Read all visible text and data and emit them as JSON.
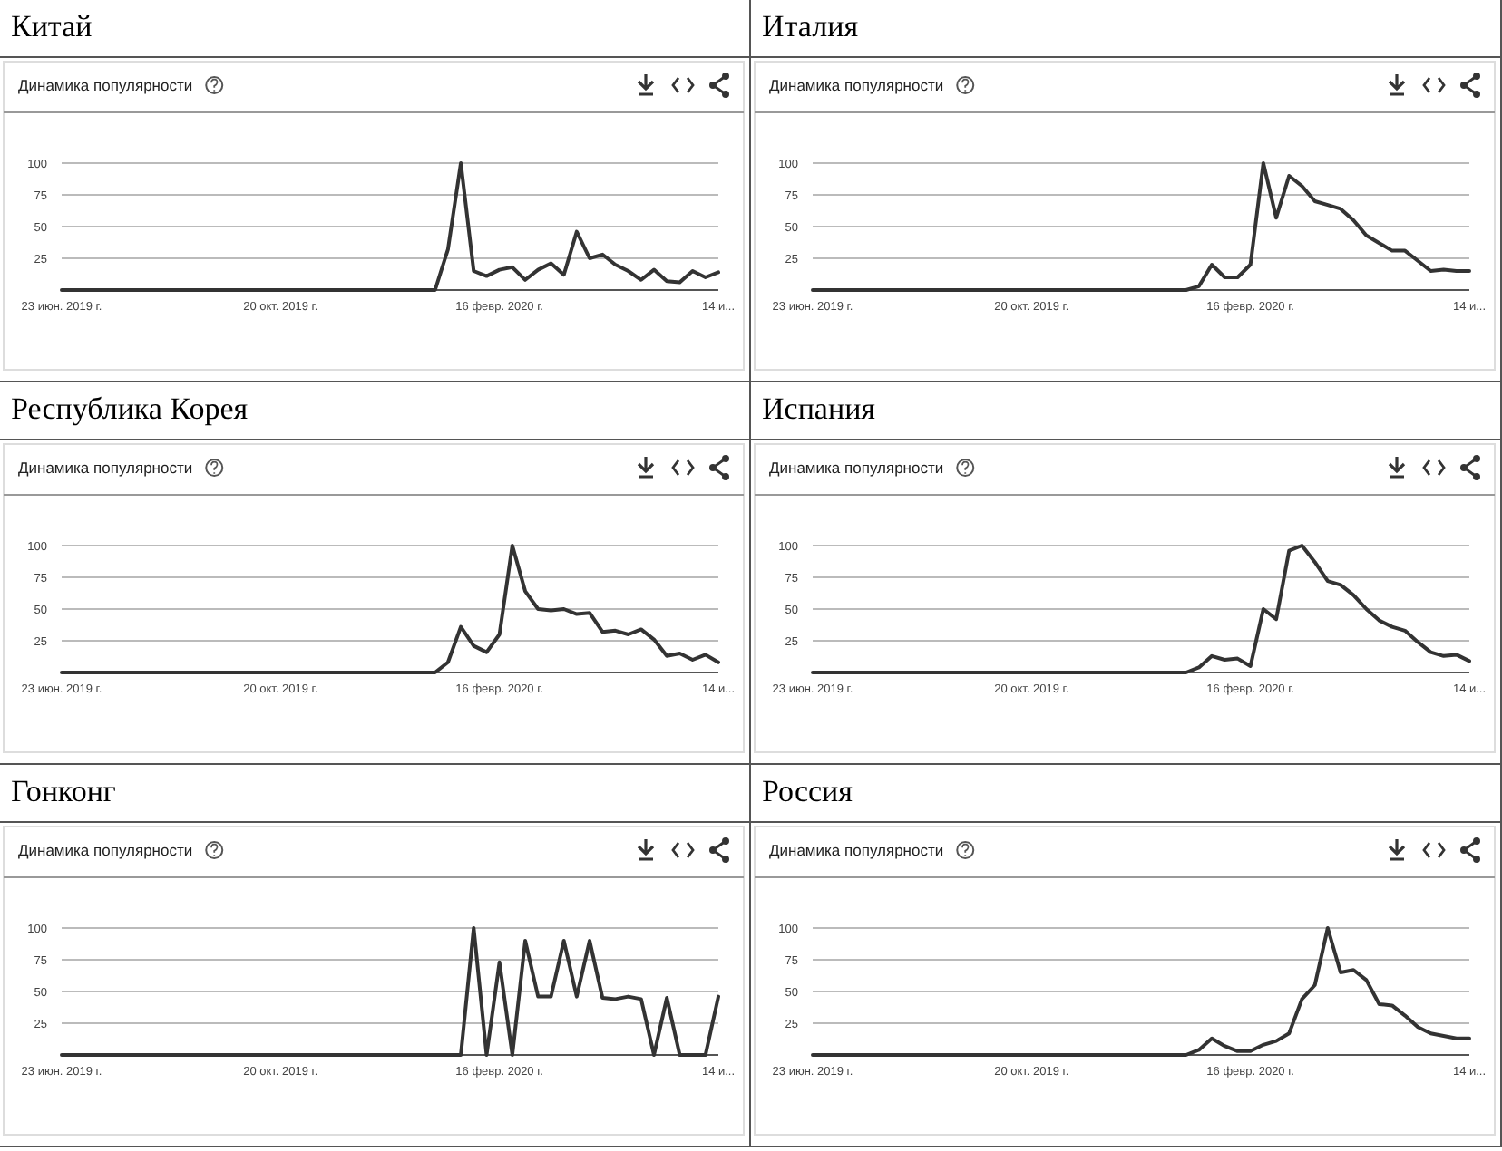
{
  "chart_data": [
    {
      "type": "line",
      "title": "Китай",
      "subtitle": "Динамика популярности",
      "color": "#333333",
      "grid": "y",
      "xlim": [
        "2019-06-23",
        "2020-06-14"
      ],
      "xticks": [
        {
          "value": "2019-06-23",
          "label": "23 июн. 2019 г."
        },
        {
          "value": "2019-10-20",
          "label": "20 окт. 2019 г."
        },
        {
          "value": "2020-02-16",
          "label": "16 февр. 2020 г."
        },
        {
          "value": "2020-06-14",
          "label": "14 и..."
        }
      ],
      "ylim": [
        0,
        100
      ],
      "yticks": [
        25,
        50,
        75,
        100
      ],
      "x": [
        "2019-06-23",
        "2020-01-12",
        "2020-01-19",
        "2020-01-26",
        "2020-02-02",
        "2020-02-09",
        "2020-02-16",
        "2020-02-23",
        "2020-03-01",
        "2020-03-08",
        "2020-03-15",
        "2020-03-22",
        "2020-03-29",
        "2020-04-05",
        "2020-04-12",
        "2020-04-19",
        "2020-04-26",
        "2020-05-03",
        "2020-05-10",
        "2020-05-17",
        "2020-05-24",
        "2020-05-31",
        "2020-06-07",
        "2020-06-14"
      ],
      "values": [
        0,
        0,
        32,
        100,
        15,
        11,
        16,
        18,
        8,
        16,
        21,
        12,
        46,
        25,
        28,
        20,
        15,
        8,
        16,
        7,
        6,
        15,
        10,
        14
      ]
    },
    {
      "type": "line",
      "title": "Италия",
      "subtitle": "Динамика популярности",
      "color": "#333333",
      "grid": "y",
      "xlim": [
        "2019-06-23",
        "2020-06-14"
      ],
      "xticks": [
        {
          "value": "2019-06-23",
          "label": "23 июн. 2019 г."
        },
        {
          "value": "2019-10-20",
          "label": "20 окт. 2019 г."
        },
        {
          "value": "2020-02-16",
          "label": "16 февр. 2020 г."
        },
        {
          "value": "2020-06-14",
          "label": "14 и..."
        }
      ],
      "ylim": [
        0,
        100
      ],
      "yticks": [
        25,
        50,
        75,
        100
      ],
      "x": [
        "2019-06-23",
        "2020-01-12",
        "2020-01-19",
        "2020-01-26",
        "2020-02-02",
        "2020-02-09",
        "2020-02-16",
        "2020-02-23",
        "2020-03-01",
        "2020-03-08",
        "2020-03-15",
        "2020-03-22",
        "2020-03-29",
        "2020-04-05",
        "2020-04-12",
        "2020-04-19",
        "2020-04-26",
        "2020-05-03",
        "2020-05-10",
        "2020-05-17",
        "2020-05-24",
        "2020-05-31",
        "2020-06-07",
        "2020-06-14"
      ],
      "values": [
        0,
        0,
        3,
        20,
        10,
        10,
        20,
        100,
        57,
        90,
        82,
        70,
        67,
        64,
        55,
        43,
        37,
        31,
        31,
        23,
        15,
        16,
        15,
        15
      ]
    },
    {
      "type": "line",
      "title": "Республика Корея",
      "subtitle": "Динамика популярности",
      "color": "#333333",
      "grid": "y",
      "xlim": [
        "2019-06-23",
        "2020-06-14"
      ],
      "xticks": [
        {
          "value": "2019-06-23",
          "label": "23 июн. 2019 г."
        },
        {
          "value": "2019-10-20",
          "label": "20 окт. 2019 г."
        },
        {
          "value": "2020-02-16",
          "label": "16 февр. 2020 г."
        },
        {
          "value": "2020-06-14",
          "label": "14 и..."
        }
      ],
      "ylim": [
        0,
        100
      ],
      "yticks": [
        25,
        50,
        75,
        100
      ],
      "x": [
        "2019-06-23",
        "2020-01-12",
        "2020-01-19",
        "2020-01-26",
        "2020-02-02",
        "2020-02-09",
        "2020-02-16",
        "2020-02-23",
        "2020-03-01",
        "2020-03-08",
        "2020-03-15",
        "2020-03-22",
        "2020-03-29",
        "2020-04-05",
        "2020-04-12",
        "2020-04-19",
        "2020-04-26",
        "2020-05-03",
        "2020-05-10",
        "2020-05-17",
        "2020-05-24",
        "2020-05-31",
        "2020-06-07",
        "2020-06-14"
      ],
      "values": [
        0,
        0,
        8,
        36,
        21,
        16,
        30,
        100,
        64,
        50,
        49,
        50,
        46,
        47,
        32,
        33,
        30,
        34,
        26,
        13,
        15,
        10,
        14,
        8
      ]
    },
    {
      "type": "line",
      "title": "Испания",
      "subtitle": "Динамика популярности",
      "color": "#333333",
      "grid": "y",
      "xlim": [
        "2019-06-23",
        "2020-06-14"
      ],
      "xticks": [
        {
          "value": "2019-06-23",
          "label": "23 июн. 2019 г."
        },
        {
          "value": "2019-10-20",
          "label": "20 окт. 2019 г."
        },
        {
          "value": "2020-02-16",
          "label": "16 февр. 2020 г."
        },
        {
          "value": "2020-06-14",
          "label": "14 и..."
        }
      ],
      "ylim": [
        0,
        100
      ],
      "yticks": [
        25,
        50,
        75,
        100
      ],
      "x": [
        "2019-06-23",
        "2020-01-12",
        "2020-01-19",
        "2020-01-26",
        "2020-02-02",
        "2020-02-09",
        "2020-02-16",
        "2020-02-23",
        "2020-03-01",
        "2020-03-08",
        "2020-03-15",
        "2020-03-22",
        "2020-03-29",
        "2020-04-05",
        "2020-04-12",
        "2020-04-19",
        "2020-04-26",
        "2020-05-03",
        "2020-05-10",
        "2020-05-17",
        "2020-05-24",
        "2020-05-31",
        "2020-06-07",
        "2020-06-14"
      ],
      "values": [
        0,
        0,
        4,
        13,
        10,
        11,
        5,
        50,
        42,
        96,
        100,
        87,
        72,
        69,
        61,
        50,
        41,
        36,
        33,
        24,
        16,
        13,
        14,
        9
      ]
    },
    {
      "type": "line",
      "title": "Гонконг",
      "subtitle": "Динамика популярности",
      "color": "#333333",
      "grid": "y",
      "xlim": [
        "2019-06-23",
        "2020-06-14"
      ],
      "xticks": [
        {
          "value": "2019-06-23",
          "label": "23 июн. 2019 г."
        },
        {
          "value": "2019-10-20",
          "label": "20 окт. 2019 г."
        },
        {
          "value": "2020-02-16",
          "label": "16 февр. 2020 г."
        },
        {
          "value": "2020-06-14",
          "label": "14 и..."
        }
      ],
      "ylim": [
        0,
        100
      ],
      "yticks": [
        25,
        50,
        75,
        100
      ],
      "x": [
        "2019-06-23",
        "2020-01-12",
        "2020-01-19",
        "2020-01-26",
        "2020-02-02",
        "2020-02-09",
        "2020-02-16",
        "2020-02-23",
        "2020-03-01",
        "2020-03-08",
        "2020-03-15",
        "2020-03-22",
        "2020-03-29",
        "2020-04-05",
        "2020-04-12",
        "2020-04-19",
        "2020-04-26",
        "2020-05-03",
        "2020-05-10",
        "2020-05-17",
        "2020-05-24",
        "2020-05-31",
        "2020-06-07",
        "2020-06-14"
      ],
      "values": [
        0,
        0,
        0,
        0,
        100,
        0,
        73,
        0,
        90,
        46,
        46,
        90,
        46,
        90,
        45,
        44,
        46,
        44,
        0,
        45,
        0,
        0,
        0,
        46
      ]
    },
    {
      "type": "line",
      "title": "Россия",
      "subtitle": "Динамика популярности",
      "color": "#333333",
      "grid": "y",
      "xlim": [
        "2019-06-23",
        "2020-06-14"
      ],
      "xticks": [
        {
          "value": "2019-06-23",
          "label": "23 июн. 2019 г."
        },
        {
          "value": "2019-10-20",
          "label": "20 окт. 2019 г."
        },
        {
          "value": "2020-02-16",
          "label": "16 февр. 2020 г."
        },
        {
          "value": "2020-06-14",
          "label": "14 и..."
        }
      ],
      "ylim": [
        0,
        100
      ],
      "yticks": [
        25,
        50,
        75,
        100
      ],
      "x": [
        "2019-06-23",
        "2020-01-12",
        "2020-01-19",
        "2020-01-26",
        "2020-02-02",
        "2020-02-09",
        "2020-02-16",
        "2020-02-23",
        "2020-03-01",
        "2020-03-08",
        "2020-03-15",
        "2020-03-22",
        "2020-03-29",
        "2020-04-05",
        "2020-04-12",
        "2020-04-19",
        "2020-04-26",
        "2020-05-03",
        "2020-05-10",
        "2020-05-17",
        "2020-05-24",
        "2020-05-31",
        "2020-06-07",
        "2020-06-14"
      ],
      "values": [
        0,
        0,
        4,
        13,
        7,
        3,
        3,
        8,
        11,
        17,
        44,
        55,
        100,
        65,
        67,
        59,
        40,
        39,
        31,
        22,
        17,
        15,
        13,
        13
      ]
    }
  ]
}
